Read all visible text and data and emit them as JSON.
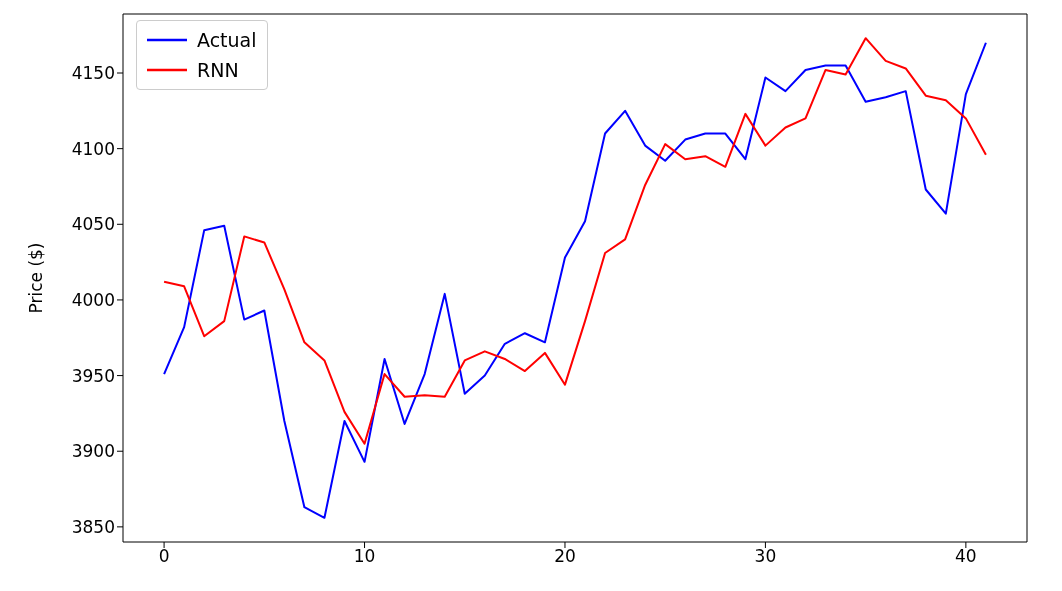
{
  "chart_data": {
    "type": "line",
    "ylabel": "Price ($)",
    "x": [
      0,
      1,
      2,
      3,
      4,
      5,
      6,
      7,
      8,
      9,
      10,
      11,
      12,
      13,
      14,
      15,
      16,
      17,
      18,
      19,
      20,
      21,
      22,
      23,
      24,
      25,
      26,
      27,
      28,
      29,
      30,
      31,
      32,
      33,
      34,
      35,
      36,
      37,
      38,
      39,
      40,
      41
    ],
    "series": [
      {
        "name": "Actual",
        "color": "#0000ff",
        "values": [
          3951,
          3982,
          4046,
          4049,
          3987,
          3993,
          3920,
          3863,
          3856,
          3920,
          3893,
          3961,
          3918,
          3951,
          4004,
          3938,
          3950,
          3971,
          3978,
          3972,
          4028,
          4052,
          4110,
          4125,
          4102,
          4092,
          4106,
          4110,
          4110,
          4093,
          4147,
          4138,
          4152,
          4155,
          4155,
          4131,
          4134,
          4138,
          4073,
          4057,
          4136,
          4170
        ]
      },
      {
        "name": "RNN",
        "color": "#ff0000",
        "values": [
          4012,
          4009,
          3976,
          3986,
          4042,
          4038,
          4007,
          3972,
          3960,
          3926,
          3905,
          3951,
          3936,
          3937,
          3936,
          3960,
          3966,
          3961,
          3953,
          3965,
          3944,
          3986,
          4031,
          4040,
          4076,
          4103,
          4093,
          4095,
          4088,
          4123,
          4102,
          4114,
          4120,
          4152,
          4149,
          4173,
          4158,
          4153,
          4135,
          4132,
          4120,
          4096
        ]
      }
    ],
    "xlim": [
      -2.05,
      43.05
    ],
    "xticks": [
      0,
      10,
      20,
      30,
      40
    ],
    "ylim": [
      3840,
      4189
    ],
    "yticks": [
      3850,
      3900,
      3950,
      4000,
      4050,
      4100,
      4150
    ],
    "grid": false,
    "legend": "top left",
    "marker": "none",
    "line_style": "solid"
  }
}
